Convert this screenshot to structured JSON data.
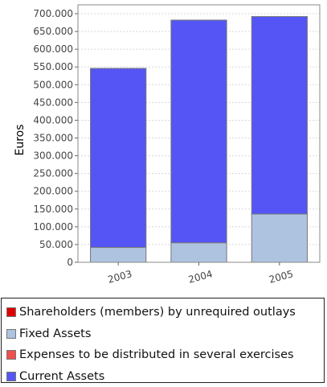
{
  "chart_data": {
    "type": "bar",
    "stacked": true,
    "categories": [
      "2003",
      "2004",
      "2005"
    ],
    "ylabel": "Euros",
    "xlabel": "",
    "ylim": [
      0,
      725000
    ],
    "yticks": [
      "0",
      "50.000",
      "100.000",
      "150.000",
      "200.000",
      "250.000",
      "300.000",
      "350.000",
      "400.000",
      "450.000",
      "500.000",
      "550.000",
      "600.000",
      "650.000",
      "700.000"
    ],
    "grid": true,
    "legend_position": "bottom",
    "series": [
      {
        "name": "Shareholders (members) by unrequired outlays",
        "color": "#e00000",
        "values": [
          0,
          0,
          0
        ]
      },
      {
        "name": "Fixed Assets",
        "color": "#adc3e0",
        "values": [
          42000,
          55000,
          136000
        ]
      },
      {
        "name": "Expenses to be distributed in several exercises",
        "color": "#f05050",
        "values": [
          0,
          0,
          0
        ]
      },
      {
        "name": "Current Assets",
        "color": "#5555f5",
        "values": [
          504000,
          627000,
          556000
        ]
      }
    ]
  }
}
